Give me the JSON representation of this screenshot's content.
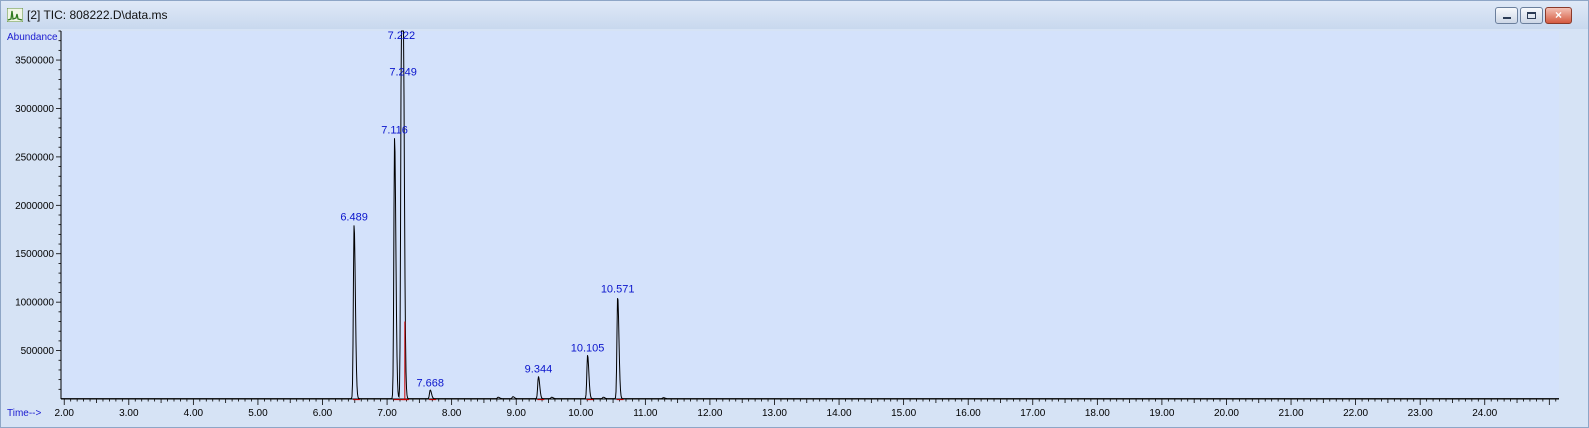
{
  "window": {
    "title": "[2] TIC: 808222.D\\data.ms",
    "minimize_label": "",
    "maximize_label": "",
    "close_label": "×"
  },
  "colors": {
    "plot_background": "#d4e2fb",
    "trace": "#000000",
    "integration": "#cc0000",
    "peak_label": "#0a14cc",
    "axis_label": "#1a1ad0"
  },
  "chart_data": {
    "type": "line",
    "ylabel": "Abundance",
    "xlabel": "Time-->",
    "xlim": [
      1.95,
      25.15
    ],
    "ylim": [
      0,
      3800000
    ],
    "x_ticks": [
      "2.00",
      "3.00",
      "4.00",
      "5.00",
      "6.00",
      "7.00",
      "8.00",
      "9.00",
      "10.00",
      "11.00",
      "12.00",
      "13.00",
      "14.00",
      "15.00",
      "16.00",
      "17.00",
      "18.00",
      "19.00",
      "20.00",
      "21.00",
      "22.00",
      "23.00",
      "24.00"
    ],
    "y_ticks": [
      {
        "value": 500000,
        "label": "500000"
      },
      {
        "value": 1000000,
        "label": "1000000"
      },
      {
        "value": 1500000,
        "label": "1500000"
      },
      {
        "value": 2000000,
        "label": "2000000"
      },
      {
        "value": 2500000,
        "label": "2500000"
      },
      {
        "value": 3000000,
        "label": "3000000"
      },
      {
        "value": 3500000,
        "label": "3500000"
      }
    ],
    "peaks": [
      {
        "rt": 6.489,
        "label": "6.489",
        "height": 1800000
      },
      {
        "rt": 7.116,
        "label": "7.116",
        "height": 2700000
      },
      {
        "rt": 7.222,
        "label": "7.222",
        "height": 3750000
      },
      {
        "rt": 7.249,
        "label": "7.249",
        "height": 3300000
      },
      {
        "rt": 7.668,
        "label": "7.668",
        "height": 90000
      },
      {
        "rt": 9.344,
        "label": "9.344",
        "height": 230000
      },
      {
        "rt": 10.105,
        "label": "10.105",
        "height": 450000
      },
      {
        "rt": 10.571,
        "label": "10.571",
        "height": 1060000
      }
    ],
    "minor_peaks": [
      {
        "rt": 8.72,
        "height": 15000
      },
      {
        "rt": 8.95,
        "height": 20000
      },
      {
        "rt": 9.55,
        "height": 15000
      },
      {
        "rt": 10.35,
        "height": 15000
      },
      {
        "rt": 11.28,
        "height": 10000
      }
    ]
  }
}
